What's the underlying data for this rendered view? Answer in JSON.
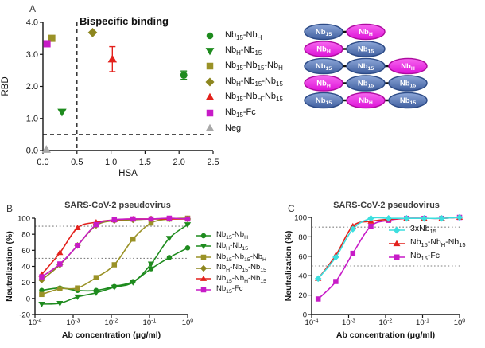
{
  "colors": {
    "green": "#1e8b1e",
    "olive": "#9a9227",
    "olive_dark": "#8d861f",
    "red": "#e3211c",
    "magenta": "#c71bc7",
    "gray": "#a9a9a9",
    "cyan": "#3ddede",
    "axis": "#151515",
    "panel_title": "#3d3d3d",
    "dotted_line": "#7f7f7f",
    "cartoon_blue_light": "#8fa9da",
    "cartoon_blue": "#3f5e9e",
    "cartoon_blue_stroke": "#2d4b87",
    "cartoon_magenta_light": "#f768f0",
    "cartoon_magenta": "#de12d8",
    "cartoon_magenta_stroke": "#ad0b9f"
  },
  "panels": {
    "a": {
      "label": "A"
    },
    "b": {
      "label": "B"
    },
    "c": {
      "label": "C"
    }
  },
  "cartoons": {
    "rows": [
      [
        {
          "label": "Nb~15~",
          "color": "blue"
        },
        {
          "label": "Nb~H~",
          "color": "magenta"
        }
      ],
      [
        {
          "label": "Nb~H~",
          "color": "magenta"
        },
        {
          "label": "Nb~15~",
          "color": "blue"
        }
      ],
      [
        {
          "label": "Nb~15~",
          "color": "blue"
        },
        {
          "label": "Nb~15~",
          "color": "blue"
        },
        {
          "label": "Nb~H~",
          "color": "magenta"
        }
      ],
      [
        {
          "label": "Nb~H~",
          "color": "magenta"
        },
        {
          "label": "Nb~15~",
          "color": "blue"
        },
        {
          "label": "Nb~15~",
          "color": "blue"
        }
      ],
      [
        {
          "label": "Nb~15~",
          "color": "blue"
        },
        {
          "label": "Nb~H~",
          "color": "magenta"
        },
        {
          "label": "Nb~15~",
          "color": "blue"
        }
      ]
    ]
  },
  "chart_data": [
    {
      "id": "chartA",
      "type": "scatter",
      "title": "Bispecific binding",
      "xlabel": "HSA",
      "ylabel": "RBD",
      "xscale": "linear",
      "xlim": [
        0,
        2.5
      ],
      "ylim": [
        0,
        4
      ],
      "xticks": [
        "0.0",
        "0.5",
        "1.0",
        "1.5",
        "2.0",
        "2.5"
      ],
      "yticks": [
        "0.0",
        "1.0",
        "2.0",
        "3.0",
        "4.0"
      ],
      "ref_lines_dashed": [
        {
          "axis": "x",
          "value": 0.5
        },
        {
          "axis": "y",
          "value": 0.5
        }
      ],
      "grid": false,
      "legend_position": "outside-right",
      "series": [
        {
          "name": "Nb~15~-Nb~H~",
          "marker": "circle",
          "color": "green",
          "x": [
            2.07
          ],
          "y": [
            2.35
          ],
          "yerr": [
            0.13
          ]
        },
        {
          "name": "Nb~H~-Nb~15~",
          "marker": "triangle-down",
          "color": "green",
          "x": [
            0.28
          ],
          "y": [
            1.2
          ],
          "yerr": [
            0
          ]
        },
        {
          "name": "Nb~15~-Nb~15~-Nb~H~",
          "marker": "square",
          "color": "olive",
          "x": [
            0.13
          ],
          "y": [
            3.5
          ],
          "yerr": [
            0
          ]
        },
        {
          "name": "Nb~H~-Nb~15~-Nb~15~",
          "marker": "diamond",
          "color": "olive_dark",
          "x": [
            0.73
          ],
          "y": [
            3.68
          ],
          "yerr": [
            0
          ]
        },
        {
          "name": "Nb~15~-Nb~H~-Nb~15~",
          "marker": "triangle-up",
          "color": "red",
          "x": [
            1.02
          ],
          "y": [
            2.85
          ],
          "yerr": [
            0.39
          ]
        },
        {
          "name": "Nb~15~-Fc",
          "marker": "square",
          "color": "magenta",
          "x": [
            0.06
          ],
          "y": [
            3.33
          ],
          "yerr": [
            0
          ]
        },
        {
          "name": "Neg",
          "marker": "triangle-up",
          "color": "gray",
          "x": [
            0.05
          ],
          "y": [
            0.03
          ],
          "yerr": [
            0
          ]
        }
      ]
    },
    {
      "id": "chartB",
      "type": "line",
      "title": "SARS-CoV-2 pseudovirus",
      "xlabel": "Ab concentration (μg/ml)",
      "ylabel": "Neutralization (%)",
      "xscale": "log",
      "xlim_exp": [
        -4,
        0
      ],
      "ylim": [
        -20,
        100
      ],
      "xticks_exp": [
        -4,
        -3,
        -2,
        -1,
        0
      ],
      "yticks": [
        -20,
        0,
        20,
        40,
        60,
        80,
        100
      ],
      "dotted_y": [
        90,
        50
      ],
      "grid": false,
      "legend_position": "outside-right",
      "x": [
        0.00015,
        0.00045,
        0.0013,
        0.004,
        0.012,
        0.037,
        0.11,
        0.33,
        1.0
      ],
      "series": [
        {
          "name": "Nb~15~-Nb~H~",
          "marker": "circle",
          "color": "green",
          "y": [
            10,
            13,
            10,
            10,
            15,
            21,
            37,
            51,
            63
          ]
        },
        {
          "name": "Nb~H~-Nb~15~",
          "marker": "triangle-down",
          "color": "green",
          "y": [
            -7,
            -6,
            2,
            7,
            14,
            20,
            43,
            75,
            92
          ]
        },
        {
          "name": "Nb~15~-Nb~15~-Nb~H~",
          "marker": "square",
          "color": "olive",
          "y": [
            5,
            12,
            13,
            26,
            42,
            74,
            94,
            99,
            100
          ]
        },
        {
          "name": "Nb~H~-Nb~15~-Nb~15~",
          "marker": "diamond",
          "color": "olive_dark",
          "y": [
            23,
            42,
            66,
            91,
            97,
            98,
            99,
            99,
            99
          ]
        },
        {
          "name": "Nb~15~-Nb~H~-Nb~15~",
          "marker": "triangle-up",
          "color": "red",
          "y": [
            30,
            57,
            88,
            95,
            98,
            99,
            99,
            99,
            99
          ]
        },
        {
          "name": "Nb~15~-Fc",
          "marker": "square",
          "color": "magenta",
          "y": [
            27,
            43,
            66,
            92,
            98,
            99,
            99,
            100,
            99
          ]
        }
      ]
    },
    {
      "id": "chartC",
      "type": "line",
      "title": "SARS-CoV-2 pseudovirus",
      "xlabel": "Ab concentration (μg/ml)",
      "ylabel": "Neutralization (%)",
      "xscale": "log",
      "xlim_exp": [
        -4,
        0
      ],
      "ylim": [
        0,
        100
      ],
      "xticks_exp": [
        -4,
        -3,
        -2,
        -1,
        0
      ],
      "yticks": [
        0,
        20,
        40,
        60,
        80,
        100
      ],
      "dotted_y": [
        90,
        50
      ],
      "grid": false,
      "legend_position": "inside-right",
      "draw_order": [
        2,
        1,
        0
      ],
      "x": [
        0.00015,
        0.00045,
        0.0013,
        0.004,
        0.012,
        0.037,
        0.11,
        0.33,
        1.0
      ],
      "series": [
        {
          "name": "3xNb~15~",
          "marker": "diamond",
          "color": "cyan",
          "y": [
            37,
            59,
            88,
            99,
            99,
            99,
            99,
            99,
            100
          ]
        },
        {
          "name": "Nb~15~-Nb~H~-Nb~15~",
          "marker": "triangle-up",
          "color": "red",
          "y": [
            37,
            61,
            91,
            96,
            98,
            99,
            99,
            99,
            100
          ]
        },
        {
          "name": "Nb~15~-Fc",
          "marker": "square",
          "color": "magenta",
          "y": [
            16,
            34,
            63,
            91,
            97,
            99,
            99,
            99,
            100
          ]
        }
      ]
    }
  ]
}
